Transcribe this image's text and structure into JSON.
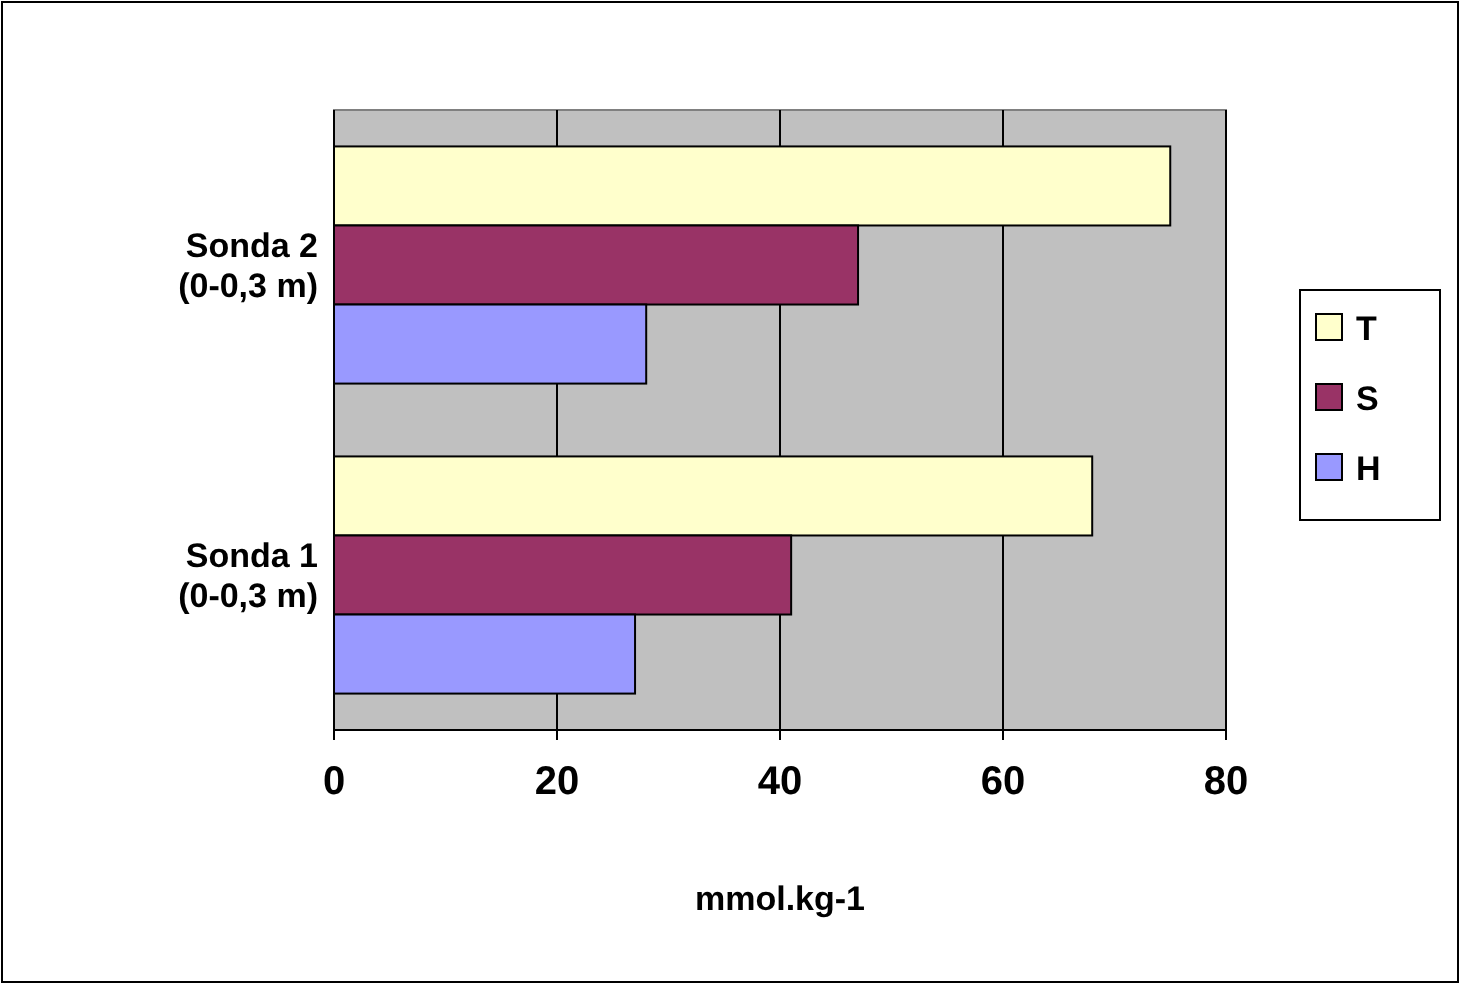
{
  "chart_data": {
    "type": "bar",
    "orientation": "horizontal",
    "categories": [
      "Sonda 2 (0-0,3 m)",
      "Sonda 1 (0-0,3 m)"
    ],
    "series": [
      {
        "name": "T",
        "color": "#ffffcc",
        "values": [
          75,
          68
        ]
      },
      {
        "name": "S",
        "color": "#993366",
        "values": [
          47,
          41
        ]
      },
      {
        "name": "H",
        "color": "#9999ff",
        "values": [
          28,
          27
        ]
      }
    ],
    "xlabel": "mmol.kg-1",
    "xlim": [
      0,
      80
    ],
    "xticks": [
      0,
      20,
      40,
      60,
      80
    ],
    "grid": "x",
    "legend": "right"
  }
}
